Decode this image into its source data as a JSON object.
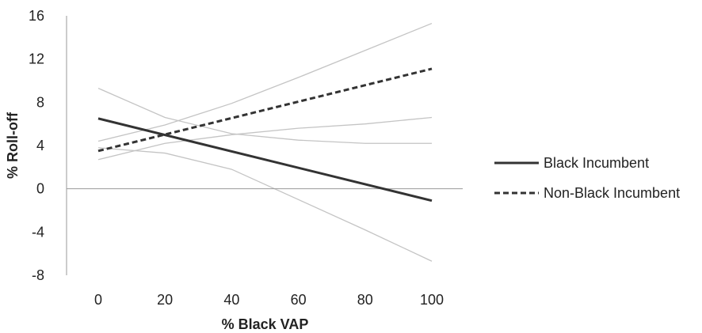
{
  "chart_data": {
    "type": "line",
    "xlabel": "% Black VAP",
    "ylabel": "% Roll-off",
    "xlim": [
      -10,
      100
    ],
    "ylim": [
      -8,
      16
    ],
    "x_ticks": [
      0,
      20,
      40,
      60,
      80,
      100
    ],
    "y_ticks": [
      16,
      12,
      8,
      4,
      0,
      -4,
      -8
    ],
    "grid": false,
    "zero_line": true,
    "legend_position": "right",
    "series": [
      {
        "name": "Black Incumbent",
        "style": "solid",
        "color": "#333333",
        "x": [
          0,
          100
        ],
        "y": [
          6.5,
          -1.1
        ]
      },
      {
        "name": "Non-Black Incumbent",
        "style": "dashed",
        "color": "#333333",
        "x": [
          0,
          100
        ],
        "y": [
          3.5,
          11.1
        ]
      }
    ],
    "confidence_bands": [
      {
        "series": "Black Incumbent",
        "bound": "upper",
        "color": "#c4c4c4",
        "x": [
          0,
          20,
          40,
          60,
          80,
          100
        ],
        "y": [
          9.3,
          6.6,
          5.1,
          4.5,
          4.2,
          4.2
        ]
      },
      {
        "series": "Black Incumbent",
        "bound": "lower",
        "color": "#c4c4c4",
        "x": [
          0,
          20,
          40,
          60,
          80,
          100
        ],
        "y": [
          3.8,
          3.3,
          1.8,
          -1.0,
          -3.8,
          -6.7
        ]
      },
      {
        "series": "Non-Black Incumbent",
        "bound": "upper",
        "color": "#c4c4c4",
        "x": [
          0,
          20,
          40,
          60,
          80,
          100
        ],
        "y": [
          4.4,
          5.9,
          7.9,
          10.3,
          12.8,
          15.3
        ]
      },
      {
        "series": "Non-Black Incumbent",
        "bound": "lower",
        "color": "#c4c4c4",
        "x": [
          0,
          20,
          40,
          60,
          80,
          100
        ],
        "y": [
          2.7,
          4.2,
          5.0,
          5.6,
          6.0,
          6.6
        ]
      }
    ]
  }
}
